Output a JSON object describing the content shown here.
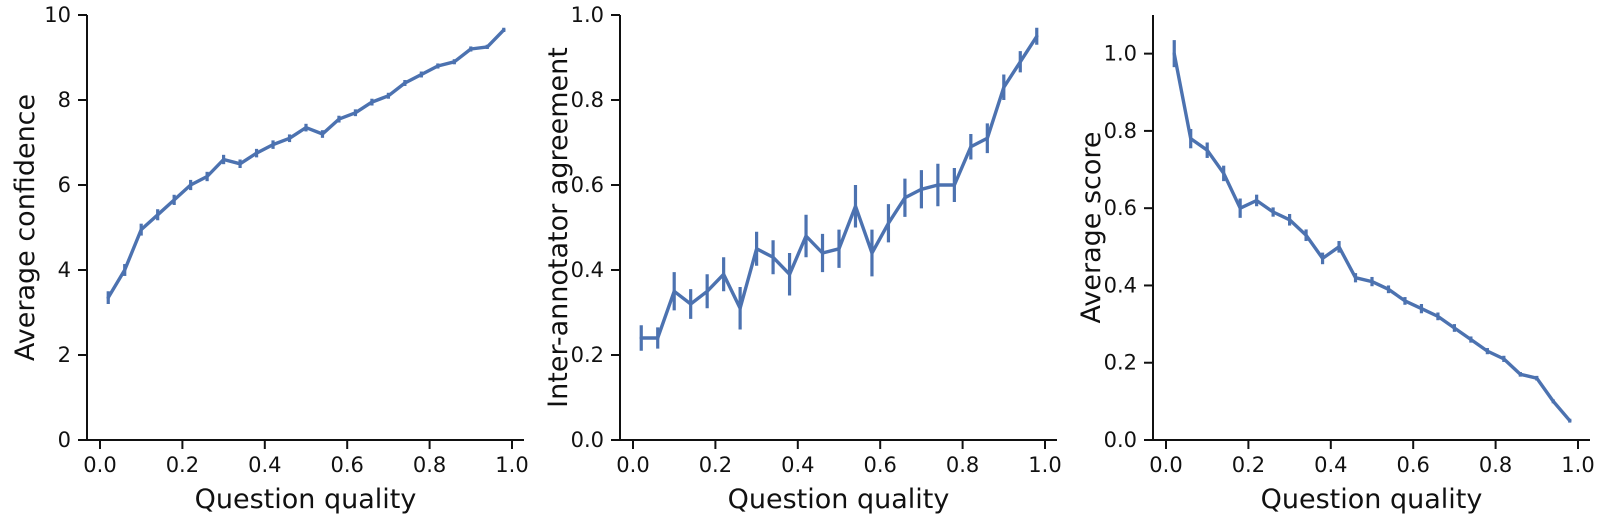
{
  "figure": {
    "background": "#ffffff",
    "line_color": "#4c72b0",
    "axis_color": "#111111",
    "text_color": "#111111"
  },
  "chart_data": [
    {
      "id": "average-confidence",
      "type": "line",
      "title": "",
      "xlabel": "Question quality",
      "ylabel": "Average confidence",
      "grid": false,
      "legend": null,
      "markers": false,
      "error_bars": true,
      "line_color": "#4c72b0",
      "xlim": [
        -0.032,
        1.03
      ],
      "ylim": [
        0,
        10
      ],
      "xticks": [
        0.0,
        0.2,
        0.4,
        0.6,
        0.8,
        1.0
      ],
      "xtick_labels": [
        "0.0",
        "0.2",
        "0.4",
        "0.6",
        "0.8",
        "1.0"
      ],
      "yticks": [
        0,
        2,
        4,
        6,
        8,
        10
      ],
      "ytick_labels": [
        "0",
        "2",
        "4",
        "6",
        "8",
        "10"
      ],
      "x": [
        0.02,
        0.06,
        0.1,
        0.14,
        0.18,
        0.22,
        0.26,
        0.3,
        0.34,
        0.38,
        0.42,
        0.46,
        0.5,
        0.54,
        0.58,
        0.62,
        0.66,
        0.7,
        0.74,
        0.78,
        0.82,
        0.86,
        0.9,
        0.94,
        0.98
      ],
      "y": [
        3.35,
        4.0,
        4.95,
        5.3,
        5.65,
        6.0,
        6.2,
        6.6,
        6.5,
        6.75,
        6.95,
        7.1,
        7.35,
        7.2,
        7.55,
        7.7,
        7.95,
        8.1,
        8.4,
        8.6,
        8.8,
        8.9,
        9.2,
        9.25,
        9.65
      ],
      "yerr": [
        0.15,
        0.14,
        0.14,
        0.13,
        0.12,
        0.12,
        0.11,
        0.11,
        0.1,
        0.1,
        0.1,
        0.09,
        0.09,
        0.09,
        0.08,
        0.08,
        0.08,
        0.07,
        0.07,
        0.07,
        0.06,
        0.06,
        0.06,
        0.05,
        0.05
      ]
    },
    {
      "id": "inter-annotator-agreement",
      "type": "line",
      "title": "",
      "xlabel": "Question quality",
      "ylabel": "Inter-annotator agreement",
      "grid": false,
      "legend": null,
      "markers": false,
      "error_bars": true,
      "line_color": "#4c72b0",
      "xlim": [
        -0.032,
        1.03
      ],
      "ylim": [
        0,
        1.0
      ],
      "xticks": [
        0.0,
        0.2,
        0.4,
        0.6,
        0.8,
        1.0
      ],
      "xtick_labels": [
        "0.0",
        "0.2",
        "0.4",
        "0.6",
        "0.8",
        "1.0"
      ],
      "yticks": [
        0.0,
        0.2,
        0.4,
        0.6,
        0.8,
        1.0
      ],
      "ytick_labels": [
        "0.0",
        "0.2",
        "0.4",
        "0.6",
        "0.8",
        "1.0"
      ],
      "x": [
        0.02,
        0.06,
        0.1,
        0.14,
        0.18,
        0.22,
        0.26,
        0.3,
        0.34,
        0.38,
        0.42,
        0.46,
        0.5,
        0.54,
        0.58,
        0.62,
        0.66,
        0.7,
        0.74,
        0.78,
        0.82,
        0.86,
        0.9,
        0.94,
        0.98
      ],
      "y": [
        0.24,
        0.24,
        0.35,
        0.32,
        0.35,
        0.39,
        0.31,
        0.45,
        0.43,
        0.39,
        0.48,
        0.44,
        0.45,
        0.55,
        0.44,
        0.51,
        0.57,
        0.59,
        0.6,
        0.6,
        0.69,
        0.71,
        0.83,
        0.89,
        0.95
      ],
      "yerr": [
        0.03,
        0.025,
        0.045,
        0.035,
        0.04,
        0.04,
        0.05,
        0.04,
        0.04,
        0.05,
        0.05,
        0.045,
        0.045,
        0.05,
        0.055,
        0.045,
        0.045,
        0.045,
        0.05,
        0.04,
        0.03,
        0.035,
        0.03,
        0.025,
        0.02
      ]
    },
    {
      "id": "average-score",
      "type": "line",
      "title": "",
      "xlabel": "Question quality",
      "ylabel": "Average score",
      "grid": false,
      "legend": null,
      "markers": false,
      "error_bars": true,
      "line_color": "#4c72b0",
      "xlim": [
        -0.032,
        1.03
      ],
      "ylim": [
        0,
        1.1
      ],
      "xticks": [
        0.0,
        0.2,
        0.4,
        0.6,
        0.8,
        1.0
      ],
      "xtick_labels": [
        "0.0",
        "0.2",
        "0.4",
        "0.6",
        "0.8",
        "1.0"
      ],
      "yticks": [
        0.0,
        0.2,
        0.4,
        0.6,
        0.8,
        1.0
      ],
      "ytick_labels": [
        "0.0",
        "0.2",
        "0.4",
        "0.6",
        "0.8",
        "1.0"
      ],
      "x": [
        0.02,
        0.06,
        0.1,
        0.14,
        0.18,
        0.22,
        0.26,
        0.3,
        0.34,
        0.38,
        0.42,
        0.46,
        0.5,
        0.54,
        0.58,
        0.62,
        0.66,
        0.7,
        0.74,
        0.78,
        0.82,
        0.86,
        0.9,
        0.94,
        0.98
      ],
      "y": [
        1.0,
        0.78,
        0.75,
        0.69,
        0.6,
        0.62,
        0.59,
        0.57,
        0.53,
        0.47,
        0.5,
        0.42,
        0.41,
        0.39,
        0.36,
        0.34,
        0.32,
        0.29,
        0.26,
        0.23,
        0.21,
        0.17,
        0.16,
        0.1,
        0.05
      ],
      "yerr": [
        0.035,
        0.025,
        0.02,
        0.02,
        0.025,
        0.015,
        0.012,
        0.015,
        0.015,
        0.015,
        0.015,
        0.012,
        0.012,
        0.01,
        0.01,
        0.012,
        0.01,
        0.01,
        0.008,
        0.008,
        0.008,
        0.006,
        0.006,
        0.005,
        0.005
      ]
    }
  ]
}
